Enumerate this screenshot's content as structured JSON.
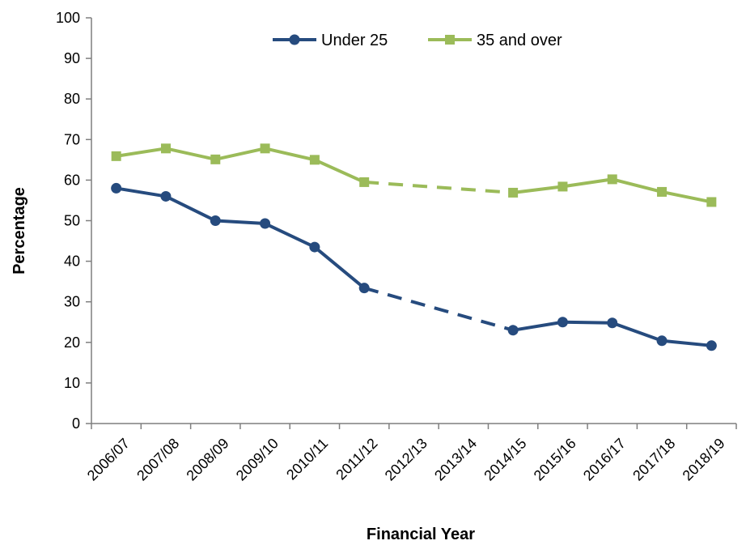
{
  "chart_data": {
    "type": "line",
    "title": "",
    "xlabel": "Financial Year",
    "ylabel": "Percentage",
    "ylim": [
      0,
      100
    ],
    "yticks": [
      0,
      10,
      20,
      30,
      40,
      50,
      60,
      70,
      80,
      90,
      100
    ],
    "categories": [
      "2006/07",
      "2007/08",
      "2008/09",
      "2009/10",
      "2010/11",
      "2011/12",
      "2012/13",
      "2013/14",
      "2014/15",
      "2015/16",
      "2016/17",
      "2017/18",
      "2018/19"
    ],
    "grid": false,
    "legend_position": "top",
    "gap_style": "dashed",
    "series": [
      {
        "name": "Under 25",
        "color": "#264B7E",
        "marker": "circle",
        "values": [
          58,
          56,
          50,
          49.3,
          43.5,
          33.4,
          null,
          null,
          23,
          25,
          24.8,
          20.4,
          19.2
        ]
      },
      {
        "name": "35 and over",
        "color": "#9BBB59",
        "marker": "square",
        "values": [
          65.9,
          67.8,
          65.1,
          67.8,
          65,
          59.5,
          null,
          null,
          56.9,
          58.4,
          60.2,
          57.1,
          54.6
        ]
      }
    ]
  }
}
